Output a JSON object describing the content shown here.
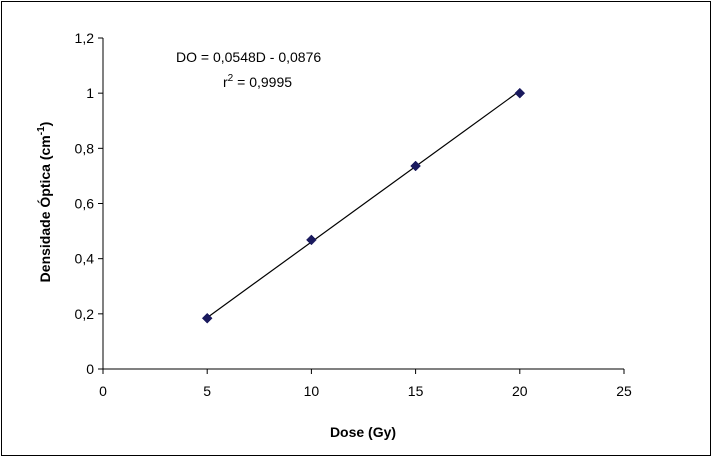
{
  "chart_data": {
    "type": "scatter",
    "xlabel": "Dose (Gy)",
    "ylabel": "Densidade Óptica (cm",
    "ylabel_superscript": "-1",
    "ylabel_suffix": ")",
    "xlim": [
      0,
      25
    ],
    "ylim": [
      0,
      1.2
    ],
    "x_ticks": [
      0,
      5,
      10,
      15,
      20,
      25
    ],
    "x_tick_labels": [
      "0",
      "5",
      "10",
      "15",
      "20",
      "25"
    ],
    "y_ticks": [
      0,
      0.2,
      0.4,
      0.6,
      0.8,
      1.0,
      1.2
    ],
    "y_tick_labels": [
      "0",
      "0,2",
      "0,4",
      "0,6",
      "0,8",
      "1",
      "1,2"
    ],
    "grid": false,
    "legend": "none",
    "series": [
      {
        "x": [
          5,
          10,
          15,
          20
        ],
        "y": [
          0.184,
          0.468,
          0.736,
          1.0
        ],
        "marker": "diamond",
        "color": "#1a1a5e"
      }
    ],
    "trendline": {
      "slope": 0.0548,
      "intercept": -0.0876,
      "x_range": [
        5,
        20
      ],
      "color": "#000000"
    },
    "annotations": {
      "equation": "DO = 0,0548D - 0,0876",
      "r2_prefix": "r",
      "r2_sup": "2",
      "r2_value": " = 0,9995"
    }
  }
}
